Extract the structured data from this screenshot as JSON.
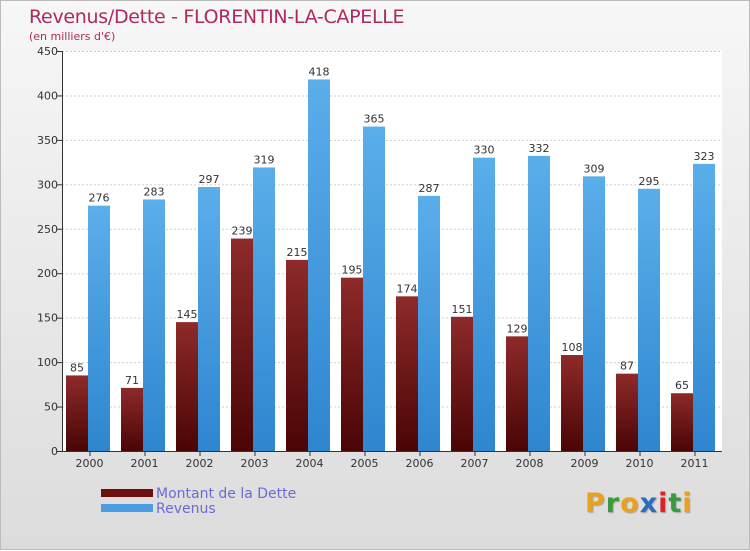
{
  "header": {
    "title": "Revenus/Dette - FLORENTIN-LA-CAPELLE",
    "subtitle": "(en milliers d'€)"
  },
  "colors": {
    "title": "#b0285f",
    "dette_top": "#8e2a2a",
    "dette_bottom": "#4a0505",
    "revenus_top": "#5aaeea",
    "revenus_bottom": "#2f86cf",
    "legend_text": "#6b6bd6"
  },
  "legend": {
    "items": [
      {
        "label": "Montant de la Dette",
        "color": "#6b0f0f"
      },
      {
        "label": "Revenus",
        "color": "#4a9de2"
      }
    ]
  },
  "logo": {
    "letters": [
      "P",
      "r",
      "o",
      "x",
      "i",
      "t",
      "i"
    ],
    "colors": [
      "#e9a21f",
      "#3a9a3e",
      "#e9a21f",
      "#2a6cc0",
      "#d9242a",
      "#3a9a3e",
      "#e9a21f"
    ]
  },
  "chart_data": {
    "type": "bar",
    "title": "Revenus/Dette - FLORENTIN-LA-CAPELLE",
    "subtitle": "(en milliers d'€)",
    "categories": [
      "2000",
      "2001",
      "2002",
      "2003",
      "2004",
      "2005",
      "2006",
      "2007",
      "2008",
      "2009",
      "2010",
      "2011"
    ],
    "series": [
      {
        "name": "Montant de la Dette",
        "values": [
          85,
          71,
          145,
          239,
          215,
          195,
          174,
          151,
          129,
          108,
          87,
          65
        ]
      },
      {
        "name": "Revenus",
        "values": [
          276,
          283,
          297,
          319,
          418,
          365,
          287,
          330,
          332,
          309,
          295,
          323
        ]
      }
    ],
    "ylim": [
      0,
      450
    ],
    "yticks": [
      0,
      50,
      100,
      150,
      200,
      250,
      300,
      350,
      400,
      450
    ],
    "grid": true,
    "legend_position": "bottom-left"
  }
}
